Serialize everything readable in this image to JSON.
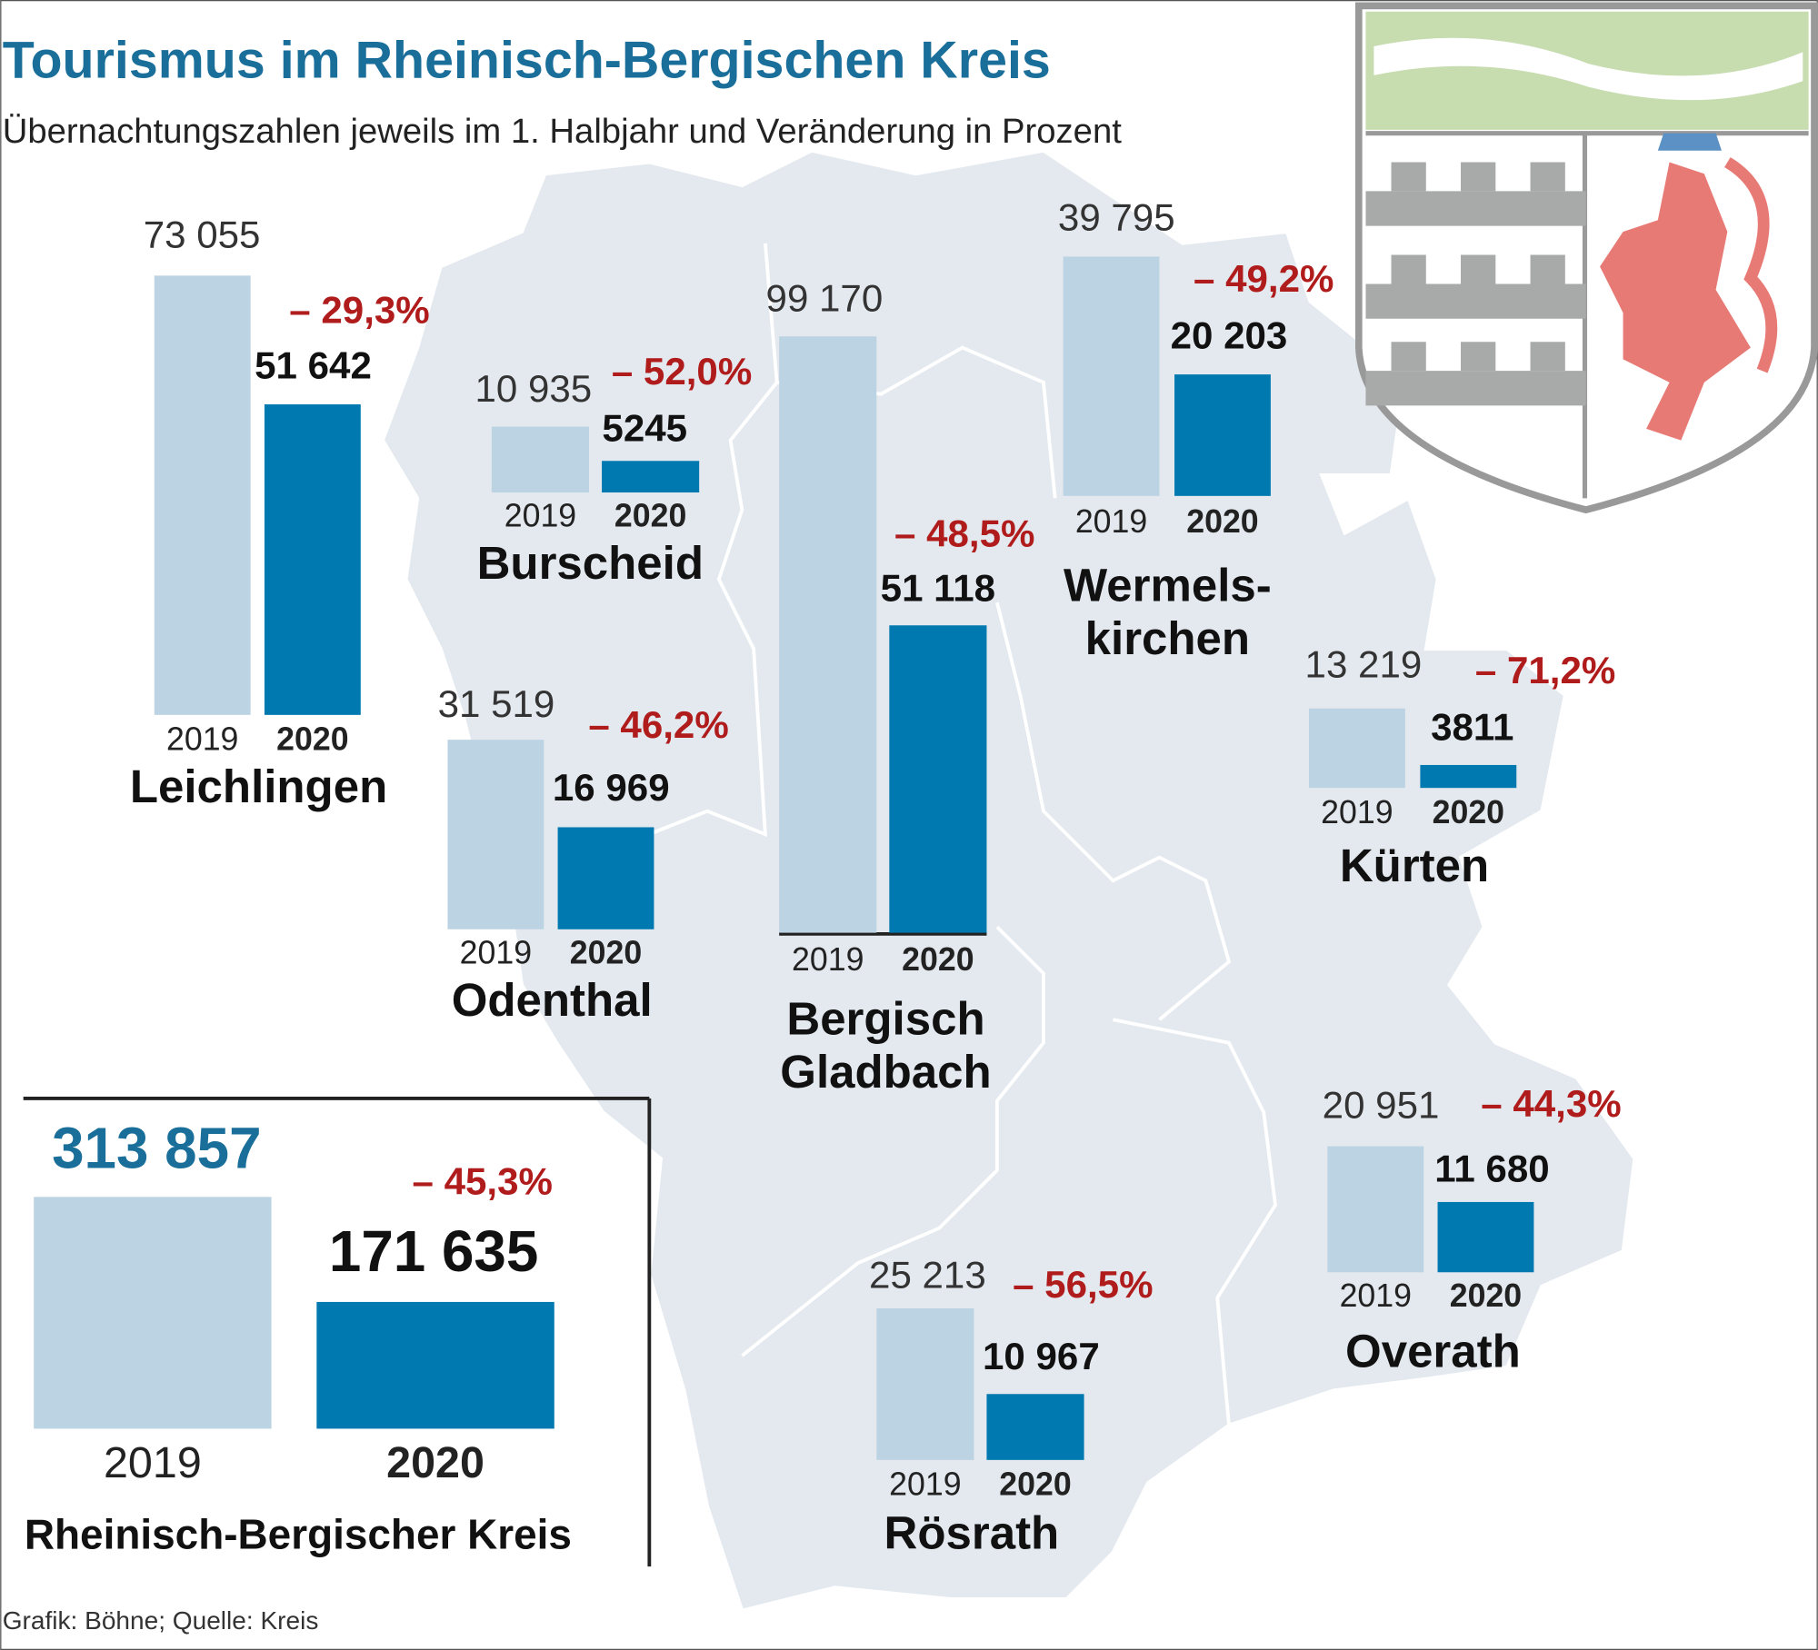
{
  "title": "Tourismus im Rheinisch-Bergischen Kreis",
  "subtitle": "Übernachtungszahlen jeweils im 1. Halbjahr und Veränderung in Prozent",
  "source": "Grafik: Böhne; Quelle: Kreis",
  "chart_data": [
    {
      "type": "bar",
      "title": [
        "Leichlingen"
      ],
      "categories": [
        "2019",
        "2020"
      ],
      "values": [
        73055,
        51642
      ],
      "value_labels": [
        "73 055",
        "51 642"
      ],
      "annotation": "– 29,3%",
      "colors": [
        "#bcd3e3",
        "#0079b0"
      ]
    },
    {
      "type": "bar",
      "title": [
        "Burscheid"
      ],
      "categories": [
        "2019",
        "2020"
      ],
      "values": [
        10935,
        5245
      ],
      "value_labels": [
        "10 935",
        "5245"
      ],
      "annotation": "– 52,0%",
      "colors": [
        "#bcd3e3",
        "#0079b0"
      ]
    },
    {
      "type": "bar",
      "title": [
        "Bergisch",
        "Gladbach"
      ],
      "categories": [
        "2019",
        "2020"
      ],
      "values": [
        99170,
        51118
      ],
      "value_labels": [
        "99 170",
        "51 118"
      ],
      "annotation": "– 48,5%",
      "colors": [
        "#bcd3e3",
        "#0079b0"
      ]
    },
    {
      "type": "bar",
      "title": [
        "Wermels-",
        "kirchen"
      ],
      "categories": [
        "2019",
        "2020"
      ],
      "values": [
        39795,
        20203
      ],
      "value_labels": [
        "39 795",
        "20 203"
      ],
      "annotation": "– 49,2%",
      "colors": [
        "#bcd3e3",
        "#0079b0"
      ]
    },
    {
      "type": "bar",
      "title": [
        "Odenthal"
      ],
      "categories": [
        "2019",
        "2020"
      ],
      "values": [
        31519,
        16969
      ],
      "value_labels": [
        "31 519",
        "16 969"
      ],
      "annotation": "– 46,2%",
      "colors": [
        "#bcd3e3",
        "#0079b0"
      ]
    },
    {
      "type": "bar",
      "title": [
        "Kürten"
      ],
      "categories": [
        "2019",
        "2020"
      ],
      "values": [
        13219,
        3811
      ],
      "value_labels": [
        "13 219",
        "3811"
      ],
      "annotation": "– 71,2%",
      "colors": [
        "#bcd3e3",
        "#0079b0"
      ]
    },
    {
      "type": "bar",
      "title": [
        "Overath"
      ],
      "categories": [
        "2019",
        "2020"
      ],
      "values": [
        20951,
        11680
      ],
      "value_labels": [
        "20 951",
        "11 680"
      ],
      "annotation": "– 44,3%",
      "colors": [
        "#bcd3e3",
        "#0079b0"
      ]
    },
    {
      "type": "bar",
      "title": [
        "Rösrath"
      ],
      "categories": [
        "2019",
        "2020"
      ],
      "values": [
        25213,
        10967
      ],
      "value_labels": [
        "25 213",
        "10 967"
      ],
      "annotation": "– 56,5%",
      "colors": [
        "#bcd3e3",
        "#0079b0"
      ]
    },
    {
      "type": "bar",
      "title": [
        "Rheinisch-Bergischer Kreis"
      ],
      "categories": [
        "2019",
        "2020"
      ],
      "values": [
        313857,
        171635
      ],
      "value_labels": [
        "313 857",
        "171 635"
      ],
      "annotation": "– 45,3%",
      "colors": [
        "#bcd3e3",
        "#0079b0"
      ]
    }
  ]
}
